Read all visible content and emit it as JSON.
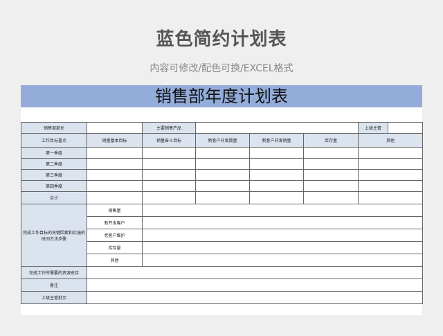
{
  "header": {
    "title": "蓝色简约计划表",
    "subtitle": "内容可修改/配色可换/EXCEL格式"
  },
  "sheet": {
    "title": "销售部年度计划表",
    "row1": {
      "dept_head": "销售部部长",
      "main_product": "主要销售产品",
      "supervisor": "上级主管"
    },
    "columns": [
      "工作目标重点",
      "销量基本目标",
      "销量奋斗目标",
      "新客户开发数量",
      "新客户开发销量",
      "库存量",
      "其他"
    ],
    "quarters": [
      "第一季度",
      "第二季度",
      "第三季度",
      "第四季度",
      "合计"
    ],
    "steps_label": "完成工作目标的关键因素和实施的时间方法步骤",
    "steps": [
      "销售量",
      "新开发客户",
      "老客户维护",
      "库存量",
      "其他"
    ],
    "footer_rows": [
      "完成工作所需要的资源支持",
      "备注",
      "上级主管批示"
    ]
  },
  "colors": {
    "title_bar": "#93acd9",
    "label_cell": "#dbe3ef"
  }
}
